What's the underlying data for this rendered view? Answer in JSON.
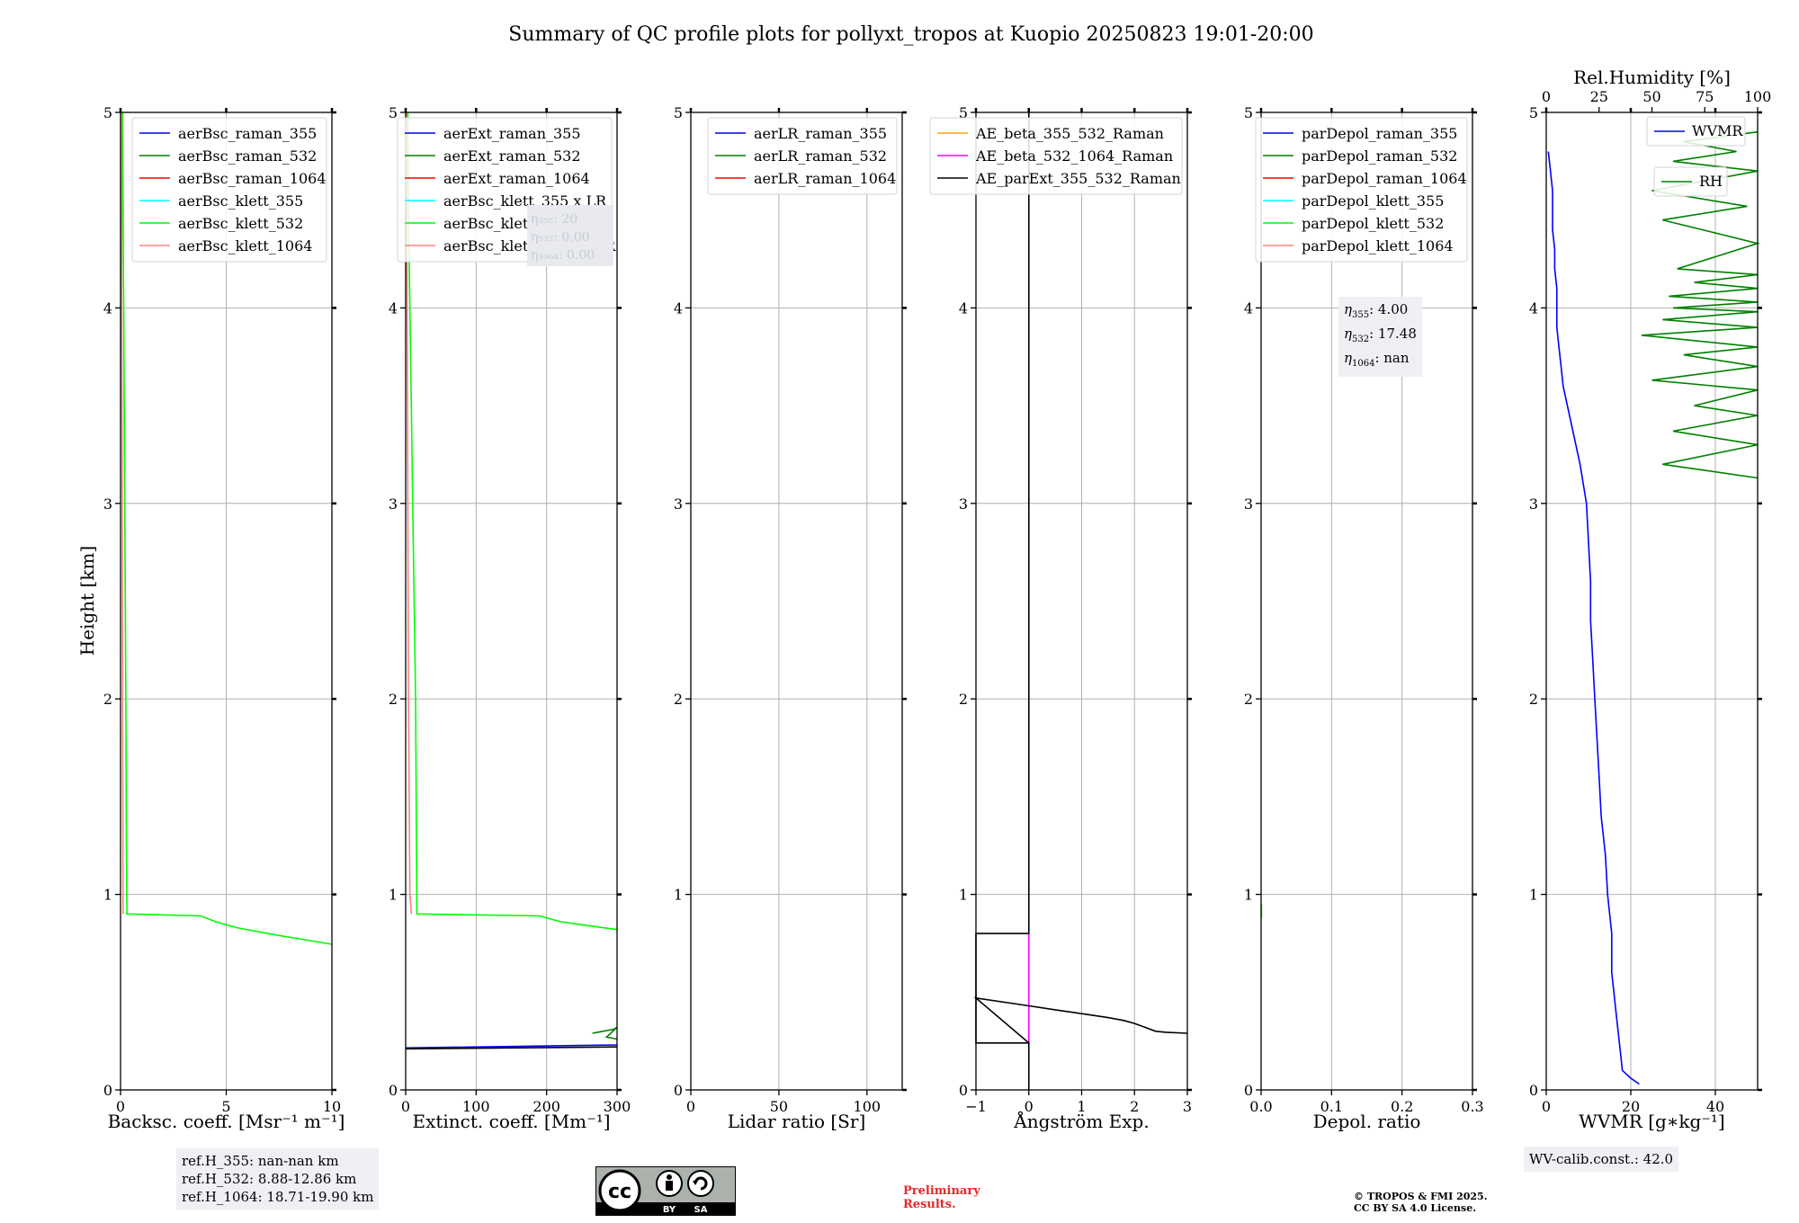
{
  "title": "Summary of QC profile plots for pollyxt_tropos at Kuopio 20250823 19:01-20:00",
  "ylabel": "Height [km]",
  "colors": {
    "blue": "#0000ff",
    "green": "#008000",
    "red": "#ff0000",
    "cyan": "#00ffff",
    "lime": "#00ff00",
    "salmon": "#ff8080",
    "orange": "#ffa500",
    "magenta": "#ff00ff",
    "black": "#000000"
  },
  "chart_data": [
    {
      "type": "line",
      "xlabel": "Backsc. coeff. [Msr⁻¹ m⁻¹]",
      "xlim": [
        0,
        10
      ],
      "ylim": [
        0,
        5
      ],
      "xticks": [
        "0",
        "5",
        "10"
      ],
      "yticks": [
        "0",
        "1",
        "2",
        "3",
        "4",
        "5"
      ],
      "legend_position": "top-right",
      "series": [
        {
          "name": "aerBsc_raman_355",
          "color": "blue",
          "x": [],
          "y": []
        },
        {
          "name": "aerBsc_raman_532",
          "color": "green",
          "x": [],
          "y": []
        },
        {
          "name": "aerBsc_raman_1064",
          "color": "red",
          "x": [],
          "y": []
        },
        {
          "name": "aerBsc_klett_355",
          "color": "cyan",
          "x": [],
          "y": []
        },
        {
          "name": "aerBsc_klett_532",
          "color": "lime",
          "x": [
            0.1,
            0.12,
            0.15,
            0.2,
            0.25,
            0.28,
            0.3,
            3.8,
            4.5,
            5.5,
            7.5,
            10
          ],
          "y": [
            5.0,
            4.5,
            4.0,
            3.0,
            2.0,
            1.2,
            0.9,
            0.89,
            0.86,
            0.83,
            0.79,
            0.745
          ]
        },
        {
          "name": "aerBsc_klett_1064",
          "color": "salmon",
          "x": [
            0.05,
            0.05,
            0.08,
            0.1,
            0.12,
            0.12
          ],
          "y": [
            5.0,
            4.0,
            3.0,
            2.0,
            1.0,
            0.9
          ]
        }
      ]
    },
    {
      "type": "line",
      "xlabel": "Extinct. coeff. [Mm⁻¹]",
      "xlim": [
        0,
        300
      ],
      "ylim": [
        0,
        5
      ],
      "xticks": [
        "0",
        "100",
        "200",
        "300"
      ],
      "yticks": [
        "0",
        "1",
        "2",
        "3",
        "4",
        "5"
      ],
      "legend_position": "top-right",
      "series": [
        {
          "name": "aerExt_raman_355",
          "color": "blue",
          "x": [
            0,
            300
          ],
          "y": [
            0.215,
            0.23
          ]
        },
        {
          "name": "aerExt_raman_532",
          "color": "green",
          "x": [
            265,
            280,
            295,
            300,
            285,
            300
          ],
          "y": [
            0.29,
            0.3,
            0.31,
            0.32,
            0.27,
            0.26
          ]
        },
        {
          "name": "aerExt_raman_1064",
          "color": "red",
          "x": [],
          "y": []
        },
        {
          "name": "aerBsc_klett_355 x LR",
          "color": "cyan",
          "x": [],
          "y": []
        },
        {
          "name": "aerBsc_klett_532 x LR",
          "color": "lime",
          "x": [
            3,
            4,
            6,
            8,
            10,
            12,
            14,
            16,
            190,
            200,
            220,
            260,
            300
          ],
          "y": [
            5.0,
            4.5,
            4.0,
            3.5,
            3.0,
            2.5,
            2.0,
            0.9,
            0.89,
            0.88,
            0.86,
            0.84,
            0.82
          ]
        },
        {
          "name": "aerBsc_klett_1064 x LR",
          "color": "salmon",
          "x": [
            1,
            2,
            3,
            4,
            6,
            8
          ],
          "y": [
            5.0,
            4.0,
            3.0,
            2.0,
            1.0,
            0.9
          ]
        },
        {
          "name": "",
          "color": "black",
          "x": [
            0,
            300
          ],
          "y": [
            0.21,
            0.22
          ]
        }
      ]
    },
    {
      "type": "line",
      "xlabel": "Lidar ratio [Sr]",
      "xlim": [
        0,
        120
      ],
      "ylim": [
        0,
        5
      ],
      "xticks": [
        "0",
        "50",
        "100"
      ],
      "yticks": [
        "0",
        "1",
        "2",
        "3",
        "4",
        "5"
      ],
      "legend_position": "top-right",
      "series": [
        {
          "name": "aerLR_raman_355",
          "color": "blue",
          "x": [],
          "y": []
        },
        {
          "name": "aerLR_raman_532",
          "color": "green",
          "x": [],
          "y": []
        },
        {
          "name": "aerLR_raman_1064",
          "color": "red",
          "x": [],
          "y": []
        }
      ]
    },
    {
      "type": "line",
      "xlabel": "Ångström Exp.",
      "xlim": [
        -1,
        3
      ],
      "ylim": [
        0,
        5
      ],
      "xticks": [
        "−1",
        "0",
        "1",
        "2",
        "3"
      ],
      "yticks": [
        "0",
        "1",
        "2",
        "3",
        "4",
        "5"
      ],
      "legend_position": "top-right",
      "series": [
        {
          "name": "AE_beta_355_532_Raman",
          "color": "orange",
          "x": [],
          "y": []
        },
        {
          "name": "AE_beta_532_1064_Raman",
          "color": "magenta",
          "x": [
            0,
            0
          ],
          "y": [
            0.24,
            0.8
          ]
        },
        {
          "name": "AE_parExt_355_532_Raman",
          "color": "black",
          "x": [
            0,
            0,
            -1,
            -1,
            0,
            0,
            0,
            -1,
            0,
            0.5,
            1.0,
            1.5,
            1.8,
            2.0,
            2.2,
            2.4,
            2.6,
            3.0
          ],
          "y": [
            5.0,
            0.8,
            0.8,
            0.24,
            0.24,
            0.0,
            0.24,
            0.47,
            0.43,
            0.41,
            0.39,
            0.37,
            0.355,
            0.34,
            0.32,
            0.3,
            0.295,
            0.29
          ]
        }
      ]
    },
    {
      "type": "line",
      "xlabel": "Depol. ratio",
      "xlim": [
        0,
        0.3
      ],
      "ylim": [
        0,
        5
      ],
      "xticks": [
        "0.0",
        "0.1",
        "0.2",
        "0.3"
      ],
      "yticks": [
        "0",
        "1",
        "2",
        "3",
        "4",
        "5"
      ],
      "legend_position": "top-right",
      "series": [
        {
          "name": "parDepol_raman_355",
          "color": "blue",
          "x": [],
          "y": []
        },
        {
          "name": "parDepol_raman_532",
          "color": "green",
          "x": [],
          "y": []
        },
        {
          "name": "parDepol_raman_1064",
          "color": "red",
          "x": [],
          "y": []
        },
        {
          "name": "parDepol_klett_355",
          "color": "cyan",
          "x": [],
          "y": []
        },
        {
          "name": "parDepol_klett_532",
          "color": "lime",
          "x": [
            0.0005,
            0.0005
          ],
          "y": [
            0.88,
            0.95
          ]
        },
        {
          "name": "parDepol_klett_1064",
          "color": "salmon",
          "x": [],
          "y": []
        }
      ]
    },
    {
      "type": "line",
      "xlabel": "WVMR [g∗kg⁻¹]",
      "x2label": "Rel.Humidity [%]",
      "xlim": [
        0,
        50
      ],
      "x2lim": [
        0,
        100
      ],
      "ylim": [
        0,
        5
      ],
      "xticks": [
        "0",
        "20",
        "40"
      ],
      "x2ticks": [
        "0",
        "25",
        "50",
        "75",
        "100"
      ],
      "yticks": [
        "0",
        "1",
        "2",
        "3",
        "4",
        "5"
      ],
      "legend_position": "top-right",
      "series": [
        {
          "name": "WVMR",
          "color": "blue",
          "x": [
            22,
            20,
            18,
            17.5,
            17,
            16.5,
            16,
            15.5,
            15.5,
            15.5,
            15,
            14.5,
            14,
            13,
            12.5,
            12,
            11.5,
            11,
            10.5,
            10.5,
            10,
            9.5,
            8,
            7,
            6,
            5,
            4,
            3.5,
            3,
            2.5,
            2.5,
            2.5,
            2,
            2,
            1.5,
            1.5,
            1.5,
            1,
            0.5
          ],
          "y": [
            0.03,
            0.06,
            0.1,
            0.2,
            0.3,
            0.4,
            0.5,
            0.6,
            0.7,
            0.8,
            0.9,
            1.0,
            1.2,
            1.4,
            1.6,
            1.8,
            2.0,
            2.2,
            2.4,
            2.6,
            2.8,
            3.0,
            3.2,
            3.3,
            3.4,
            3.5,
            3.6,
            3.7,
            3.8,
            3.9,
            4.0,
            4.1,
            4.2,
            4.3,
            4.4,
            4.5,
            4.6,
            4.7,
            4.8
          ]
        },
        {
          "name": "RH",
          "color": "green",
          "x2axis": true,
          "x": [
            100,
            55,
            100,
            60,
            100,
            70,
            100,
            50,
            100,
            65,
            100,
            45,
            100,
            55,
            100,
            60,
            100,
            58,
            100,
            70,
            100,
            62,
            100,
            55,
            95,
            50,
            100,
            60,
            90,
            65,
            100
          ],
          "y": [
            3.13,
            3.2,
            3.3,
            3.37,
            3.45,
            3.5,
            3.58,
            3.63,
            3.7,
            3.76,
            3.8,
            3.86,
            3.9,
            3.94,
            3.98,
            4.0,
            4.03,
            4.06,
            4.1,
            4.13,
            4.17,
            4.2,
            4.33,
            4.45,
            4.52,
            4.6,
            4.7,
            4.75,
            4.8,
            4.85,
            4.9
          ]
        }
      ]
    }
  ],
  "ext_hidden_info": [
    "η₃₅₅: 20",
    "η₅₃₂: 0.00",
    "η₁₀₆₄: 0.00"
  ],
  "eta_box": {
    "line1_sym": "η",
    "line1_sub": "355",
    "line1_val": ": 4.00",
    "line2_sym": "η",
    "line2_sub": "532",
    "line2_val": ": 17.48",
    "line3_sym": "η",
    "line3_sub": "1064",
    "line3_val": ": nan"
  },
  "refh": [
    "ref.H_355: nan-nan km",
    "ref.H_532: 8.88-12.86 km",
    "ref.H_1064: 18.71-19.90 km"
  ],
  "wv_calib": "WV-calib.const.: 42.0",
  "cc_badge": {
    "cc": "cc",
    "by": "BY",
    "sa": "SA"
  },
  "preliminary": [
    "Preliminary",
    "Results."
  ],
  "copyright": [
    "© TROPOS & FMI 2025.",
    "CC BY SA 4.0 License."
  ]
}
